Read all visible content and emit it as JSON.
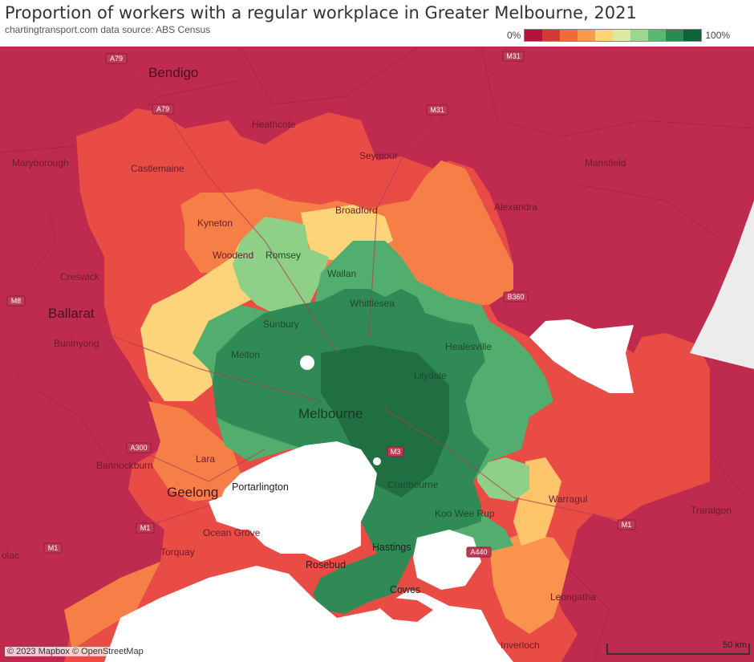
{
  "title": "Proportion of workers with a regular workplace in Greater Melbourne, 2021",
  "subtitle": "chartingtransport.com  data source: ABS Census",
  "legend": {
    "min_label": "0%",
    "max_label": "100%",
    "colors": [
      "#b5123a",
      "#d33a35",
      "#f06a3b",
      "#f99a51",
      "#fdd47a",
      "#dbeaa0",
      "#9bd78e",
      "#5cb771",
      "#2b8a52",
      "#0f6136"
    ]
  },
  "places": {
    "bendigo": "Bendigo",
    "heathcote": "Heathcote",
    "seymour": "Seymour",
    "mansfield": "Mansfield",
    "maryborough": "Maryborough",
    "castlemaine": "Castlemaine",
    "kyneton": "Kyneton",
    "broadford": "Broadford",
    "alexandra": "Alexandra",
    "woodend": "Woodend",
    "romsey": "Romsey",
    "wallan": "Wallan",
    "creswick": "Creswick",
    "whittlesea": "Whittlesea",
    "ballarat": "Ballarat",
    "sunbury": "Sunbury",
    "buninyong": "Buninyong",
    "healesville": "Healesville",
    "melton": "Melton",
    "lilydale": "Lilydale",
    "melbourne": "Melbourne",
    "bannockburn": "Bannockburn",
    "lara": "Lara",
    "portarlington": "Portarlington",
    "geelong": "Geelong",
    "cranbourne": "Cranbourne",
    "warragul": "Warragul",
    "koo_wee_rup": "Koo Wee Rup",
    "traralgon": "Traralgon",
    "ocean_grove": "Ocean Grove",
    "torquay": "Torquay",
    "hastings": "Hastings",
    "rosebud": "Rosebud",
    "cowes": "Cowes",
    "leongatha": "Leongatha",
    "inverloch": "Inverloch",
    "colac": "olac"
  },
  "roads": {
    "a79": "A79",
    "m31": "M31",
    "m8": "M8",
    "a300": "A300",
    "m1": "M1",
    "a440": "A440",
    "b360": "B360",
    "m3": "M3"
  },
  "credit": "© 2023 Mapbox © OpenStreetMap",
  "scale_label": "50 km"
}
